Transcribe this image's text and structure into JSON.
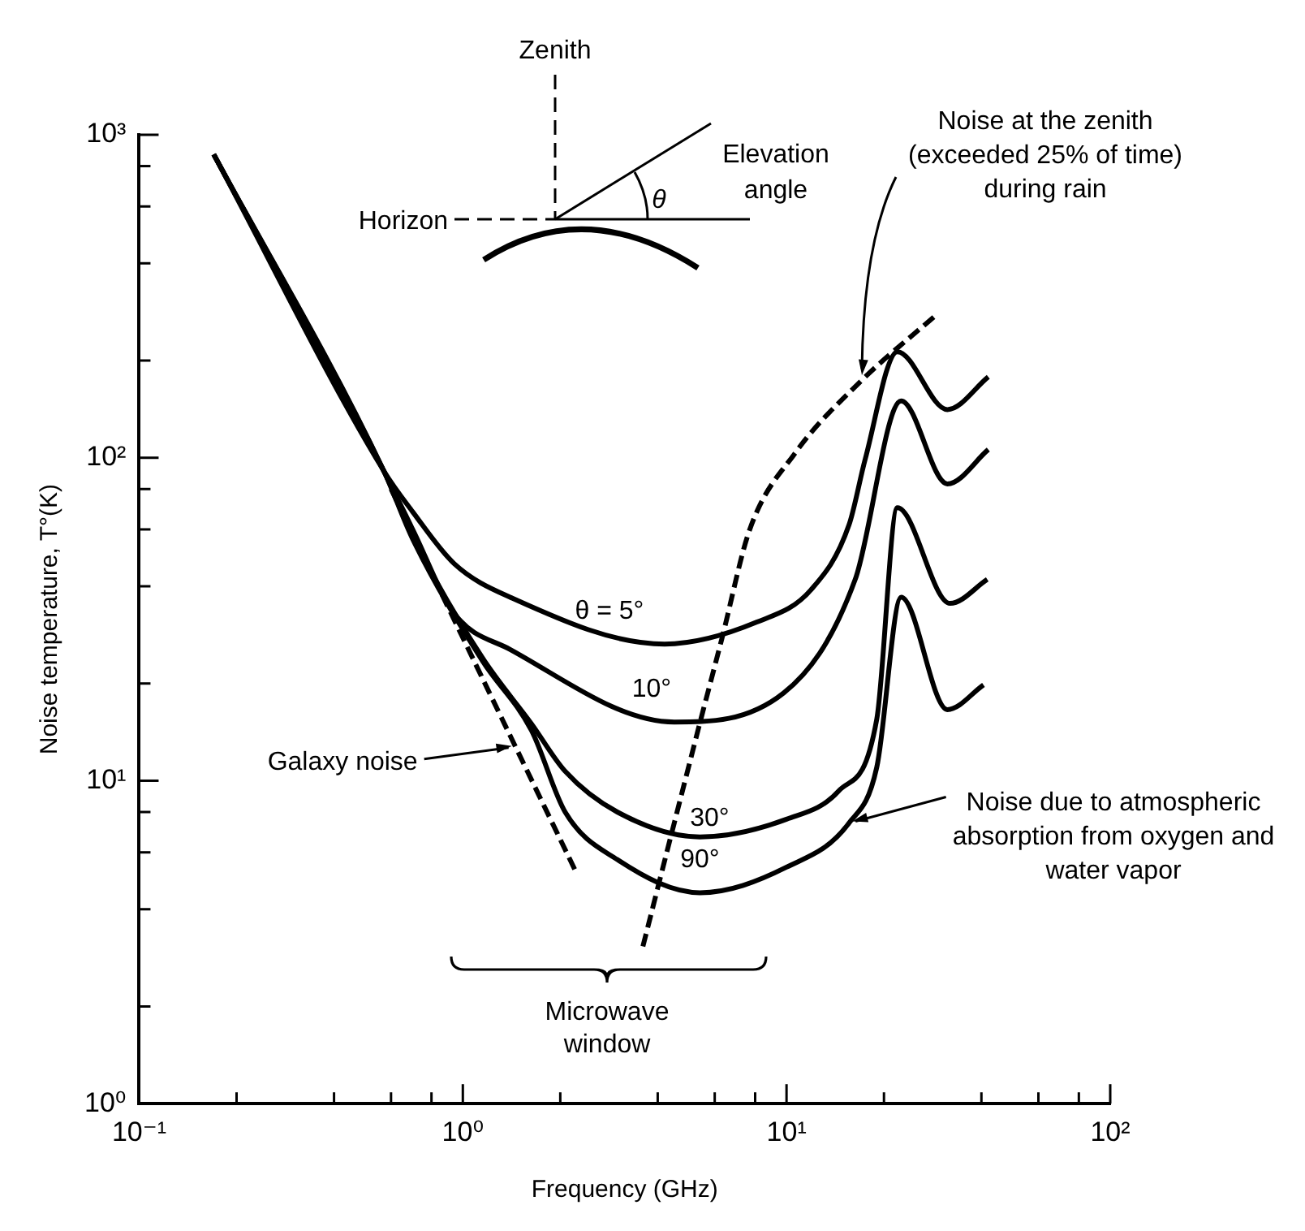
{
  "chart_data": {
    "type": "line",
    "xlabel": "Frequency (GHz)",
    "ylabel": "Noise temperature, T°(K)",
    "log": "xy",
    "legend": false,
    "marker": "none",
    "xlim": [
      0.1,
      100
    ],
    "ylim": [
      1,
      1000
    ],
    "xticks": [
      {
        "value": 0.1,
        "label": "10⁻¹"
      },
      {
        "value": 0.2,
        "label": null
      },
      {
        "value": 0.4,
        "label": null
      },
      {
        "value": 0.6,
        "label": null
      },
      {
        "value": 0.8,
        "label": null
      },
      {
        "value": 1,
        "label": "10⁰"
      },
      {
        "value": 2,
        "label": null
      },
      {
        "value": 4,
        "label": null
      },
      {
        "value": 6,
        "label": null
      },
      {
        "value": 8,
        "label": null
      },
      {
        "value": 10,
        "label": "10¹"
      },
      {
        "value": 20,
        "label": null
      },
      {
        "value": 40,
        "label": null
      },
      {
        "value": 60,
        "label": null
      },
      {
        "value": 80,
        "label": null
      },
      {
        "value": 100,
        "label": "10²"
      }
    ],
    "yticks": [
      {
        "value": 1,
        "label": "10⁰"
      },
      {
        "value": 2,
        "label": null
      },
      {
        "value": 4,
        "label": null
      },
      {
        "value": 6,
        "label": null
      },
      {
        "value": 8,
        "label": null
      },
      {
        "value": 10,
        "label": "10¹"
      },
      {
        "value": 20,
        "label": null
      },
      {
        "value": 40,
        "label": null
      },
      {
        "value": 60,
        "label": null
      },
      {
        "value": 80,
        "label": null
      },
      {
        "value": 100,
        "label": "10²"
      },
      {
        "value": 200,
        "label": null
      },
      {
        "value": 400,
        "label": null
      },
      {
        "value": 600,
        "label": null
      },
      {
        "value": 800,
        "label": null
      },
      {
        "value": 1000,
        "label": "10³"
      }
    ],
    "series": [
      {
        "name": "θ = 5°",
        "color": "#000000",
        "line_style": "solid",
        "x": [
          0.17,
          0.57,
          0.7,
          0.94,
          1.4,
          4.2,
          8.1,
          11.9,
          15.6,
          17.5,
          22,
          31.4,
          42
        ],
        "values": [
          870,
          91,
          68,
          47,
          37,
          26.5,
          31,
          39,
          62,
          99,
          213,
          141,
          178
        ]
      },
      {
        "name": "10°",
        "color": "#000000",
        "line_style": "solid",
        "x": [
          0.17,
          0.57,
          0.7,
          0.94,
          1.4,
          4.5,
          9.8,
          16.3,
          22.6,
          31.4,
          42
        ],
        "values": [
          870,
          91,
          60,
          33,
          25.5,
          15.2,
          18.7,
          42,
          150,
          83,
          106
        ]
      },
      {
        "name": "30°",
        "color": "#000000",
        "line_style": "solid",
        "x": [
          0.17,
          0.57,
          0.7,
          1.15,
          1.63,
          2.07,
          3.0,
          5.4,
          10,
          14.5,
          19,
          22,
          32,
          41.7
        ],
        "values": [
          870,
          91,
          57,
          24,
          15,
          10.7,
          8.0,
          6.7,
          7.6,
          9.3,
          15.5,
          70,
          35.4,
          42
        ]
      },
      {
        "name": "90°",
        "color": "#000000",
        "line_style": "solid",
        "x": [
          0.17,
          0.57,
          0.7,
          1.15,
          1.63,
          2.07,
          3.0,
          5.4,
          10,
          15.6,
          19,
          22.6,
          31.4,
          40.6
        ],
        "values": [
          870,
          91,
          56,
          23.5,
          14.3,
          8.0,
          5.7,
          4.5,
          5.4,
          7.4,
          11,
          37,
          16.6,
          19.8
        ]
      },
      {
        "color": "#000000",
        "line_style": "dashed",
        "x": [
          0.6,
          2.24
        ],
        "values": [
          80,
          5.2
        ]
      },
      {
        "name": "Noise at the zenith (exceeded 25% of time) during rain",
        "color": "#000000",
        "line_style": "dashed",
        "x": [
          3.6,
          4.5,
          5.4,
          6.3,
          7.7,
          10.6,
          16.9,
          29
        ],
        "values": [
          3.07,
          7.4,
          15.1,
          27.3,
          60,
          103,
          172,
          277
        ]
      }
    ],
    "annotations": [
      "Zenith",
      "Horizon",
      "Elevation angle",
      "θ",
      "Microwave window",
      {
        "text": "Galaxy noise",
        "x": 1.45,
        "y": 12.8
      },
      {
        "text": "Noise due to atmospheric absorption from oxygen and water vapor",
        "x": 15.6,
        "y": 7.4
      }
    ]
  }
}
